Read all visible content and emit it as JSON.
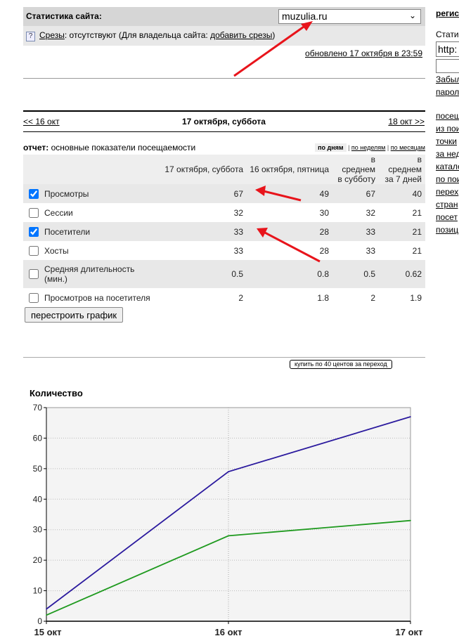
{
  "header": {
    "title": "Статистика сайта:",
    "site": "muzulia.ru"
  },
  "slices": {
    "link": "Срезы",
    "text": ": отсутствуют (Для владельца сайта: ",
    "add": "добавить срезы",
    "close": ")"
  },
  "updated": "обновлено 17 октября в 23:59",
  "nav": {
    "prev": "<< 16 окт",
    "current": "17 октября, суббота",
    "next": "18 окт >>"
  },
  "report": {
    "label": "отчет:",
    "title": "основные показатели посещаемости"
  },
  "periods": [
    "по дням",
    "по неделям",
    "по месяцам"
  ],
  "table": {
    "columns": [
      "",
      "17 октября, суббота",
      "16 октября, пятница",
      "в среднем в субботу",
      "в среднем за 7 дней"
    ],
    "rows": [
      {
        "name": "Просмотры",
        "checked": true,
        "values": [
          "67",
          "49",
          "67",
          "40"
        ]
      },
      {
        "name": "Сессии",
        "checked": false,
        "values": [
          "32",
          "30",
          "32",
          "21"
        ]
      },
      {
        "name": "Посетители",
        "checked": true,
        "values": [
          "33",
          "28",
          "33",
          "21"
        ]
      },
      {
        "name": "Хосты",
        "checked": false,
        "values": [
          "33",
          "28",
          "33",
          "21"
        ]
      },
      {
        "name": "Средняя длительность (мин.)",
        "checked": false,
        "values": [
          "0.5",
          "0.8",
          "0.5",
          "0.62"
        ]
      },
      {
        "name": "Просмотров на посетителя",
        "checked": false,
        "values": [
          "2",
          "1.8",
          "2",
          "1.9"
        ]
      }
    ]
  },
  "rebuild_button": "перестроить график",
  "buy_button": "купить по 40 центов за переход",
  "chart_data": {
    "type": "line",
    "ylabel": "Количество",
    "categories": [
      "15 окт",
      "16 окт",
      "17 окт"
    ],
    "ylim": [
      0,
      70
    ],
    "yticks": [
      "0",
      "10",
      "20",
      "30",
      "40",
      "50",
      "60",
      "70"
    ],
    "grid": true,
    "series": [
      {
        "values": [
          4,
          49,
          67
        ],
        "color": "#2b1a9e"
      },
      {
        "values": [
          2,
          28,
          33
        ],
        "color": "#1f9a1f"
      }
    ]
  },
  "sidebar": {
    "items": [
      "регис",
      "Стати",
      "http:",
      "Забыл",
      "парол",
      "посещ",
      "из пои",
      "точки",
      "за нед",
      "катало",
      "по пои",
      "перех",
      "стран",
      "посет",
      "позиц"
    ]
  }
}
